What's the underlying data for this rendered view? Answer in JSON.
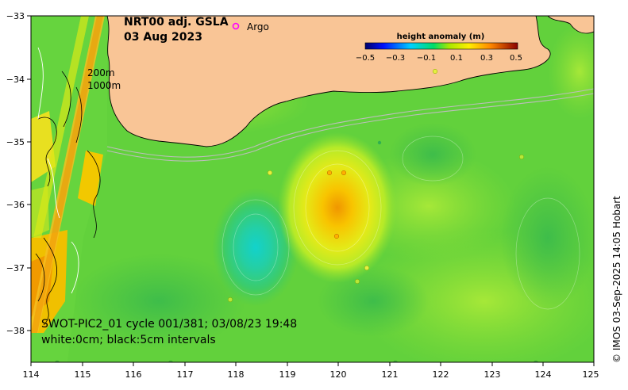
{
  "title": {
    "product": "NRT00 adj. GSLA",
    "date": "03 Aug 2023"
  },
  "legend": {
    "argo_symbol": "o",
    "argo_label": "Argo",
    "argo_color": "#ff00ff"
  },
  "colorbar": {
    "title": "height anomaly (m)",
    "tick_labels": [
      "−0.5",
      "−0.3",
      "−0.1",
      "0.1",
      "0.3",
      "0.5"
    ]
  },
  "isobaths": {
    "shallow": "200m",
    "deep": "1000m"
  },
  "swot": {
    "line1": "SWOT-PIC2_01 cycle 001/381; 03/08/23 19:48",
    "line2": "white:0cm; black:5cm intervals"
  },
  "credit": "© IMOS 03-Sep-2025 14:05 Hobart",
  "axes": {
    "x_ticks": [
      "114",
      "115",
      "116",
      "117",
      "118",
      "119",
      "120",
      "121",
      "122",
      "123",
      "124",
      "125"
    ],
    "y_ticks": [
      "−33",
      "−34",
      "−35",
      "−36",
      "−37",
      "−38"
    ]
  },
  "map_data": {
    "lon_range": [
      114,
      125
    ],
    "lat_range": [
      -38.5,
      -33
    ],
    "anomaly_range_m": [
      -0.5,
      0.5
    ],
    "eddies": [
      {
        "name": "warm-eddy",
        "lon": 120.0,
        "lat": -36.0,
        "peak_m": 0.3
      },
      {
        "name": "cold-eddy",
        "lon": 118.3,
        "lat": -36.7,
        "peak_m": -0.2
      },
      {
        "name": "cold-eddy-east",
        "lon": 121.8,
        "lat": -35.3,
        "peak_m": -0.05
      }
    ],
    "colors": {
      "land": "#f9c596",
      "ocean_base": "#5fd03c",
      "positive": "#f0c000",
      "negative": "#18c4c8"
    }
  }
}
